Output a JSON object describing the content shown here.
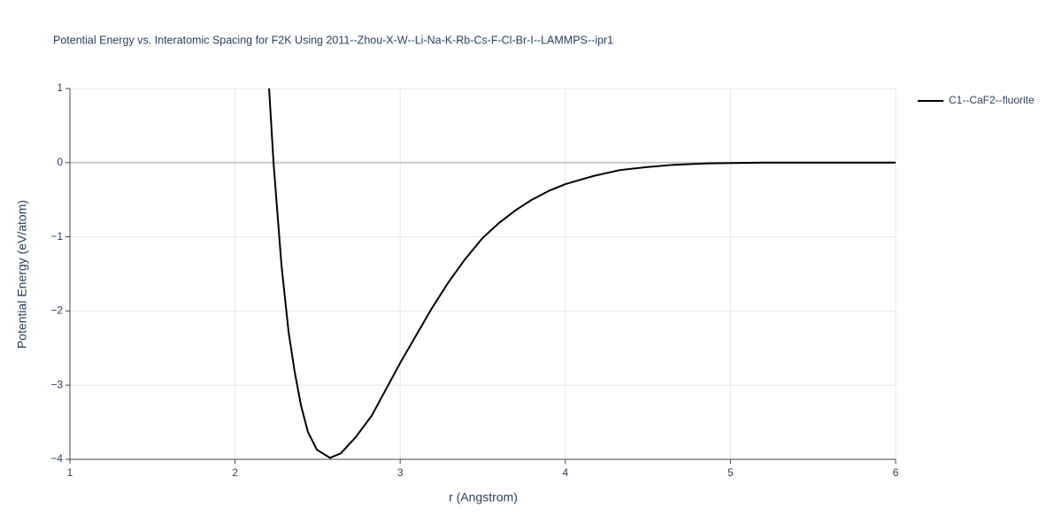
{
  "chart_data": {
    "type": "line",
    "title": "Potential Energy vs. Interatomic Spacing for F2K Using 2011--Zhou-X-W--Li-Na-K-Rb-Cs-F-Cl-Br-I--LAMMPS--ipr1",
    "x_label": "r (Angstrom)",
    "y_label": "Potential Energy (eV/atom)",
    "xlim": [
      1,
      6
    ],
    "ylim": [
      -4,
      1
    ],
    "xticks": [
      1,
      2,
      3,
      4,
      5,
      6
    ],
    "yticks": [
      1,
      0,
      {
        "value": -1,
        "label": "−1"
      },
      {
        "value": -2,
        "label": "−2"
      },
      {
        "value": -3,
        "label": "−3"
      },
      {
        "value": -4,
        "label": "−4"
      }
    ],
    "grid": true,
    "legend": "top-right",
    "series": [
      {
        "name": "C1--CaF2--fluorite",
        "color": "#000000",
        "x": [
          2.206,
          2.233,
          2.281,
          2.324,
          2.361,
          2.399,
          2.441,
          2.495,
          2.575,
          2.64,
          2.731,
          2.828,
          3.0,
          3.187,
          3.29,
          3.39,
          3.497,
          3.6,
          3.7,
          3.79,
          3.9,
          4.0,
          4.17,
          4.33,
          4.49,
          4.65,
          4.86,
          5.2,
          6.0
        ],
        "values": [
          1.0,
          0.0,
          -1.38,
          -2.28,
          -2.82,
          -3.27,
          -3.63,
          -3.87,
          -3.98,
          -3.92,
          -3.7,
          -3.41,
          -2.7,
          -1.98,
          -1.62,
          -1.31,
          -1.02,
          -0.81,
          -0.64,
          -0.51,
          -0.38,
          -0.29,
          -0.18,
          -0.1,
          -0.06,
          -0.03,
          -0.01,
          0.0,
          0.0
        ]
      }
    ]
  }
}
